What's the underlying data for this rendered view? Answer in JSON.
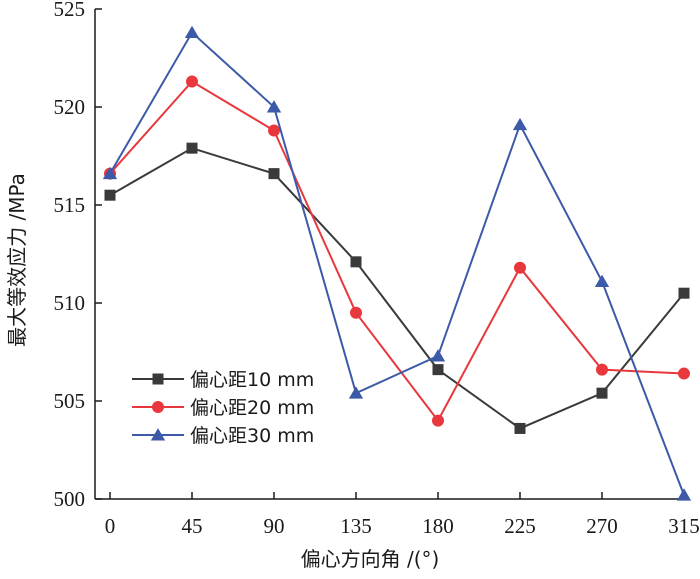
{
  "chart_data": {
    "type": "line",
    "title": "",
    "xlabel": "偏心方向角 /(°)",
    "ylabel": "最大等效应力 /MPa",
    "categories": [
      "0",
      "45",
      "90",
      "135",
      "180",
      "225",
      "270",
      "315"
    ],
    "ylim": [
      500,
      525
    ],
    "yticks": [
      "500",
      "505",
      "510",
      "515",
      "520",
      "525"
    ],
    "grid": false,
    "legend_position": "bottom-left",
    "series": [
      {
        "name": "偏心距10 mm",
        "marker": "square",
        "color": "#3a3a3a",
        "values": [
          515.5,
          517.9,
          516.6,
          512.1,
          506.6,
          503.6,
          505.4,
          510.5
        ]
      },
      {
        "name": "偏心距20 mm",
        "marker": "circle",
        "color": "#e8383d",
        "values": [
          516.6,
          521.3,
          518.8,
          509.5,
          504.0,
          511.8,
          506.6,
          506.4
        ]
      },
      {
        "name": "偏心距30 mm",
        "marker": "triangle",
        "color": "#3d5aa8",
        "values": [
          516.6,
          523.8,
          520.0,
          505.4,
          507.3,
          519.1,
          511.1,
          500.2
        ]
      }
    ]
  }
}
